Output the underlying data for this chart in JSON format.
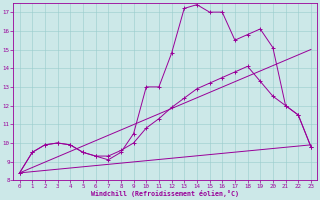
{
  "xlabel": "Windchill (Refroidissement éolien,°C)",
  "bg_color": "#cce8e8",
  "line_color": "#990099",
  "grid_color": "#99cccc",
  "xlim": [
    -0.5,
    23.5
  ],
  "ylim": [
    8,
    17.5
  ],
  "yticks": [
    8,
    9,
    10,
    11,
    12,
    13,
    14,
    15,
    16,
    17
  ],
  "xticks": [
    0,
    1,
    2,
    3,
    4,
    5,
    6,
    7,
    8,
    9,
    10,
    11,
    12,
    13,
    14,
    15,
    16,
    17,
    18,
    19,
    20,
    21,
    22,
    23
  ],
  "line1_x": [
    0,
    1,
    2,
    3,
    4,
    5,
    6,
    7,
    8,
    9,
    10,
    11,
    12,
    13,
    14,
    15,
    16,
    17,
    18,
    19,
    20,
    21,
    22,
    23
  ],
  "line1_y": [
    8.4,
    9.5,
    9.9,
    10.0,
    9.9,
    9.5,
    9.3,
    9.1,
    9.5,
    10.5,
    13.0,
    13.0,
    14.8,
    17.2,
    17.4,
    17.0,
    17.0,
    15.5,
    15.8,
    16.1,
    15.1,
    12.0,
    11.5,
    9.8
  ],
  "line2_x": [
    0,
    23
  ],
  "line2_y": [
    8.4,
    9.9
  ],
  "line3_x": [
    0,
    1,
    2,
    3,
    4,
    5,
    6,
    7,
    8,
    9,
    10,
    11,
    12,
    13,
    14,
    15,
    16,
    17,
    18,
    19,
    20,
    21,
    22,
    23
  ],
  "line3_y": [
    8.4,
    9.5,
    9.9,
    10.0,
    9.9,
    9.5,
    9.3,
    9.3,
    9.6,
    10.0,
    10.8,
    11.3,
    11.9,
    12.4,
    12.9,
    13.2,
    13.5,
    13.8,
    14.1,
    13.3,
    12.5,
    12.0,
    11.5,
    9.8
  ],
  "line4_x": [
    0,
    23
  ],
  "line4_y": [
    8.4,
    15.0
  ]
}
